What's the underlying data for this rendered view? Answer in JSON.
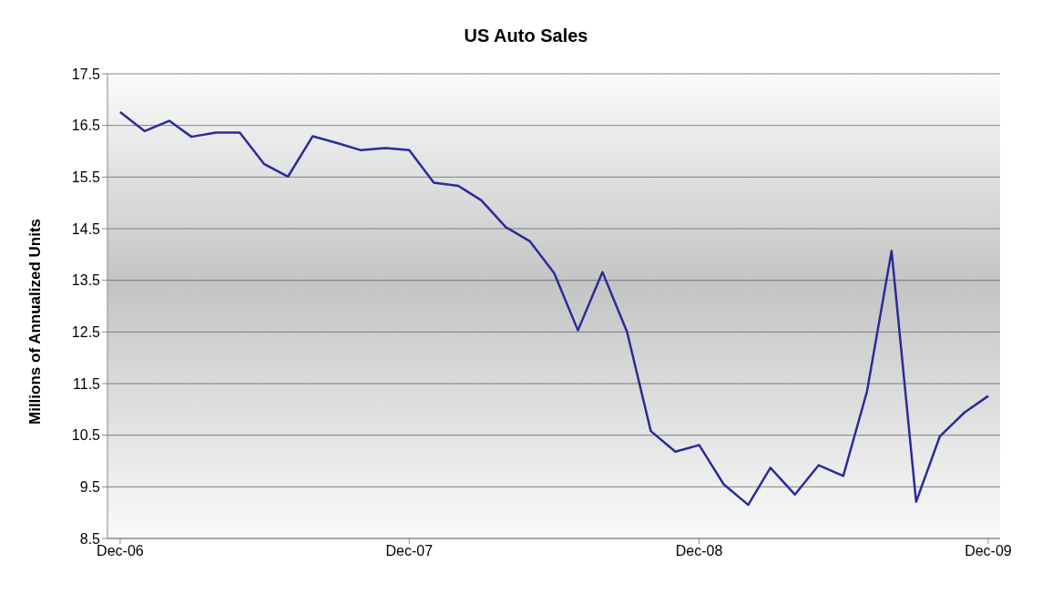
{
  "chart_data": {
    "type": "line",
    "title": "US Auto Sales",
    "ylabel": "Millions of Annualized Units",
    "x": [
      "2006-12",
      "2007-01",
      "2007-02",
      "2007-03",
      "2007-04",
      "2007-05",
      "2007-06",
      "2007-07",
      "2007-08",
      "2007-09",
      "2007-10",
      "2007-11",
      "2007-12",
      "2008-01",
      "2008-02",
      "2008-03",
      "2008-04",
      "2008-05",
      "2008-06",
      "2008-07",
      "2008-08",
      "2008-09",
      "2008-10",
      "2008-11",
      "2008-12",
      "2009-01",
      "2009-02",
      "2009-03",
      "2009-04",
      "2009-05",
      "2009-06",
      "2009-07",
      "2009-08",
      "2009-09",
      "2009-10",
      "2009-11",
      "2009-12"
    ],
    "series": [
      {
        "color": "#2b2b9a",
        "values": [
          16.76,
          16.39,
          16.59,
          16.28,
          16.36,
          16.36,
          15.75,
          15.51,
          16.29,
          16.16,
          16.02,
          16.06,
          16.02,
          15.39,
          15.33,
          15.05,
          14.53,
          14.26,
          13.64,
          12.53,
          13.66,
          12.5,
          10.58,
          10.18,
          10.31,
          9.55,
          9.15,
          9.87,
          9.35,
          9.92,
          9.71,
          11.35,
          14.07,
          9.21,
          10.48,
          10.94,
          11.26
        ]
      }
    ],
    "xlim": [
      "2006-11-15",
      "2009-12-16"
    ],
    "xticks": [
      {
        "value": "2006-12",
        "label": "Dec-06"
      },
      {
        "value": "2007-12",
        "label": "Dec-07"
      },
      {
        "value": "2008-12",
        "label": "Dec-08"
      },
      {
        "value": "2009-12",
        "label": "Dec-09"
      }
    ],
    "ylim": [
      8.5,
      17.5
    ],
    "yticks": [
      8.5,
      9.5,
      10.5,
      11.5,
      12.5,
      13.5,
      14.5,
      15.5,
      16.5,
      17.5
    ],
    "grid": "y",
    "legend": false,
    "marker": "none",
    "line_style": "solid"
  }
}
